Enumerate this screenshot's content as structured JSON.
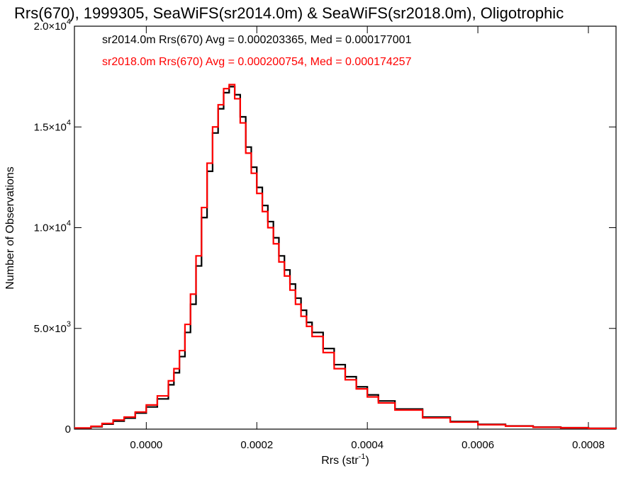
{
  "chart_data": {
    "type": "line",
    "step": true,
    "title": "Rrs(670), 1999305, SeaWiFS(sr2014.0m) & SeaWiFS(sr2018.0m), Oligotrophic",
    "xlabel": "Rrs (str",
    "xlabel_sup": "-1",
    "xlabel_close": ")",
    "ylabel": "Number of Observations",
    "xlim": [
      -0.00013,
      0.00085
    ],
    "ylim": [
      0,
      20000
    ],
    "x_ticks": [
      {
        "value": 0.0,
        "label": "0.0000"
      },
      {
        "value": 0.0002,
        "label": "0.0002"
      },
      {
        "value": 0.0004,
        "label": "0.0004"
      },
      {
        "value": 0.0006,
        "label": "0.0006"
      },
      {
        "value": 0.0008,
        "label": "0.0008"
      }
    ],
    "y_ticks": [
      {
        "value": 0,
        "label": "0",
        "sup": ""
      },
      {
        "value": 5000,
        "label": "5.0×10",
        "sup": "3"
      },
      {
        "value": 10000,
        "label": "1.0×10",
        "sup": "4"
      },
      {
        "value": 15000,
        "label": "1.5×10",
        "sup": "4"
      },
      {
        "value": 20000,
        "label": "2.0×10",
        "sup": "4"
      }
    ],
    "annotations": [
      {
        "text": "sr2014.0m Rrs(670) Avg = 0.000203365, Med = 0.000177001",
        "color": "#000000"
      },
      {
        "text": "sr2018.0m Rrs(670) Avg = 0.000200754, Med = 0.000174257",
        "color": "#ff0000"
      }
    ],
    "series": [
      {
        "color": "#000000",
        "x": [
          -0.00013,
          -0.0001,
          -8e-05,
          -6e-05,
          -4e-05,
          -2e-05,
          0.0,
          2e-05,
          4e-05,
          5e-05,
          6e-05,
          7e-05,
          8e-05,
          9e-05,
          0.0001,
          0.00011,
          0.00012,
          0.00013,
          0.00014,
          0.00015,
          0.00016,
          0.00017,
          0.00018,
          0.00019,
          0.0002,
          0.00021,
          0.00022,
          0.00023,
          0.00024,
          0.00025,
          0.00026,
          0.00027,
          0.00028,
          0.00029,
          0.0003,
          0.00032,
          0.00034,
          0.00036,
          0.00038,
          0.0004,
          0.00042,
          0.00045,
          0.0005,
          0.00055,
          0.0006,
          0.00065,
          0.0007,
          0.00075,
          0.0008,
          0.00085
        ],
        "y": [
          50,
          120,
          250,
          400,
          550,
          800,
          1100,
          1500,
          2200,
          2800,
          3600,
          4800,
          6200,
          8100,
          10500,
          12800,
          14700,
          15900,
          16700,
          17000,
          16600,
          15500,
          14000,
          13000,
          12000,
          11100,
          10300,
          9500,
          8600,
          7900,
          7200,
          6500,
          5900,
          5300,
          4800,
          4000,
          3200,
          2600,
          2100,
          1700,
          1400,
          1000,
          600,
          380,
          240,
          160,
          100,
          70,
          40,
          20
        ]
      },
      {
        "color": "#ff0000",
        "x": [
          -0.00013,
          -0.0001,
          -8e-05,
          -6e-05,
          -4e-05,
          -2e-05,
          0.0,
          2e-05,
          4e-05,
          5e-05,
          6e-05,
          7e-05,
          8e-05,
          9e-05,
          0.0001,
          0.00011,
          0.00012,
          0.00013,
          0.00014,
          0.00015,
          0.00016,
          0.00017,
          0.00018,
          0.00019,
          0.0002,
          0.00021,
          0.00022,
          0.00023,
          0.00024,
          0.00025,
          0.00026,
          0.00027,
          0.00028,
          0.00029,
          0.0003,
          0.00032,
          0.00034,
          0.00036,
          0.00038,
          0.0004,
          0.00042,
          0.00045,
          0.0005,
          0.00055,
          0.0006,
          0.00065,
          0.0007,
          0.00075,
          0.0008,
          0.00085
        ],
        "y": [
          60,
          140,
          280,
          450,
          600,
          850,
          1200,
          1650,
          2400,
          3000,
          3900,
          5200,
          6700,
          8600,
          11000,
          13200,
          15000,
          16100,
          16900,
          17100,
          16400,
          15200,
          13700,
          12700,
          11700,
          10800,
          10000,
          9200,
          8300,
          7600,
          6900,
          6200,
          5600,
          5100,
          4600,
          3800,
          3000,
          2450,
          2000,
          1600,
          1300,
          950,
          560,
          350,
          220,
          150,
          95,
          65,
          38,
          18
        ]
      }
    ]
  }
}
